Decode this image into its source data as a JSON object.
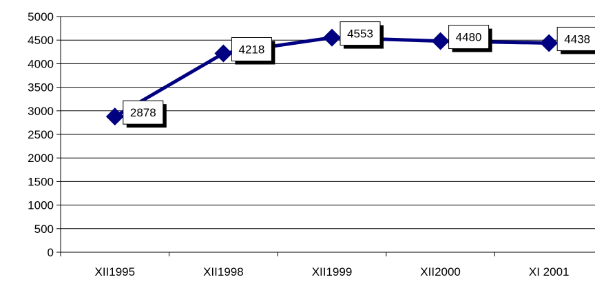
{
  "chart_data": {
    "type": "line",
    "categories": [
      "XII1995",
      "XII1998",
      "XII1999",
      "XII2000",
      "XI 2001"
    ],
    "series": [
      {
        "values": [
          2878,
          4218,
          4553,
          4480,
          4438
        ]
      }
    ],
    "data_labels": [
      "2878",
      "4218",
      "4553",
      "4480",
      "4438"
    ],
    "ylim": [
      0,
      5000
    ],
    "yticks": [
      0,
      500,
      1000,
      1500,
      2000,
      2500,
      3000,
      3500,
      4000,
      4500,
      5000
    ],
    "ytick_labels": [
      "0",
      "500",
      "1000",
      "1500",
      "2000",
      "2500",
      "3000",
      "3500",
      "4000",
      "4500",
      "5000"
    ],
    "grid": true,
    "legend": "none",
    "colors": {
      "line": "#000080",
      "marker": "#000080",
      "grid": "#000000",
      "label_box": "#ffffff"
    }
  }
}
